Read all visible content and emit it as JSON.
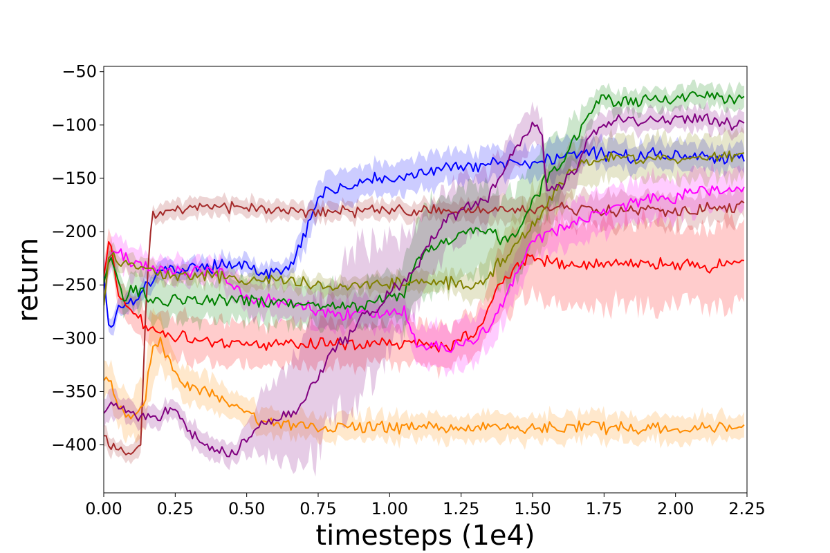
{
  "chart_data": {
    "type": "line",
    "title": "",
    "xlabel": "timesteps (1e4)",
    "ylabel": "return",
    "xlim": [
      0.0,
      2.25
    ],
    "ylim": [
      -445,
      -45
    ],
    "xticks": [
      0.0,
      0.25,
      0.5,
      0.75,
      1.0,
      1.25,
      1.5,
      1.75,
      2.0,
      2.25
    ],
    "xtick_labels": [
      "0.00",
      "0.25",
      "0.50",
      "0.75",
      "1.00",
      "1.25",
      "1.50",
      "1.75",
      "2.00",
      "2.25"
    ],
    "yticks": [
      -50,
      -100,
      -150,
      -200,
      -250,
      -300,
      -350,
      -400
    ],
    "ytick_labels": [
      "−50",
      "−100",
      "−150",
      "−200",
      "−250",
      "−300",
      "−350",
      "−400"
    ],
    "grid": false,
    "legend": "none",
    "shaded_band": true,
    "series": [
      {
        "color": "#0000ff",
        "x": [
          0,
          0.02,
          0.05,
          0.1,
          0.15,
          0.2,
          0.3,
          0.4,
          0.5,
          0.55,
          0.6,
          0.65,
          0.7,
          0.72,
          0.75,
          0.8,
          0.85,
          0.9,
          0.95,
          1.0,
          1.05,
          1.1,
          1.2,
          1.3,
          1.4,
          1.5,
          1.6,
          1.7,
          1.8,
          1.9,
          2.0,
          2.1,
          2.2,
          2.24
        ],
        "y": [
          -240,
          -295,
          -270,
          -265,
          -250,
          -235,
          -235,
          -232,
          -228,
          -240,
          -240,
          -235,
          -205,
          -185,
          -168,
          -160,
          -158,
          -155,
          -150,
          -155,
          -148,
          -145,
          -140,
          -138,
          -135,
          -135,
          -130,
          -125,
          -130,
          -128,
          -128,
          -130,
          -132,
          -128
        ],
        "spread": [
          8,
          8,
          8,
          10,
          10,
          8,
          8,
          8,
          8,
          8,
          8,
          10,
          12,
          15,
          15,
          15,
          15,
          15,
          15,
          15,
          15,
          15,
          15,
          15,
          15,
          15,
          15,
          12,
          12,
          12,
          12,
          12,
          12,
          12
        ]
      },
      {
        "color": "#a52a2a",
        "x": [
          0,
          0.02,
          0.05,
          0.1,
          0.13,
          0.15,
          0.17,
          0.2,
          0.3,
          0.4,
          0.5,
          0.6,
          0.7,
          0.8,
          0.9,
          1.0,
          1.1,
          1.2,
          1.3,
          1.4,
          1.5,
          1.6,
          1.7,
          1.8,
          1.9,
          2.0,
          2.1,
          2.2,
          2.24
        ],
        "y": [
          -390,
          -400,
          -405,
          -408,
          -395,
          -250,
          -185,
          -183,
          -178,
          -178,
          -178,
          -180,
          -182,
          -180,
          -182,
          -180,
          -182,
          -180,
          -180,
          -178,
          -180,
          -178,
          -180,
          -182,
          -180,
          -182,
          -178,
          -178,
          -175
        ],
        "spread": [
          8,
          8,
          8,
          8,
          10,
          15,
          8,
          8,
          8,
          8,
          8,
          8,
          8,
          8,
          8,
          8,
          8,
          8,
          10,
          12,
          12,
          15,
          15,
          15,
          15,
          15,
          15,
          15,
          15
        ]
      },
      {
        "color": "#ff0000",
        "x": [
          0,
          0.02,
          0.05,
          0.1,
          0.15,
          0.2,
          0.3,
          0.4,
          0.5,
          0.6,
          0.7,
          0.8,
          0.9,
          1.0,
          1.1,
          1.2,
          1.25,
          1.3,
          1.35,
          1.4,
          1.45,
          1.5,
          1.6,
          1.7,
          1.8,
          1.9,
          2.0,
          2.1,
          2.2,
          2.24
        ],
        "y": [
          -240,
          -205,
          -260,
          -275,
          -290,
          -295,
          -300,
          -305,
          -305,
          -305,
          -305,
          -305,
          -305,
          -305,
          -305,
          -310,
          -300,
          -295,
          -270,
          -245,
          -230,
          -225,
          -230,
          -230,
          -228,
          -230,
          -230,
          -232,
          -232,
          -228
        ],
        "spread": [
          15,
          10,
          15,
          15,
          15,
          20,
          20,
          20,
          20,
          20,
          20,
          20,
          20,
          20,
          20,
          20,
          20,
          20,
          25,
          30,
          35,
          40,
          40,
          40,
          40,
          40,
          40,
          40,
          40,
          40
        ]
      },
      {
        "color": "#ff00ff",
        "x": [
          0,
          0.03,
          0.1,
          0.2,
          0.3,
          0.4,
          0.5,
          0.6,
          0.7,
          0.8,
          0.9,
          1.0,
          1.05,
          1.1,
          1.2,
          1.3,
          1.35,
          1.4,
          1.45,
          1.5,
          1.6,
          1.7,
          1.8,
          1.9,
          2.0,
          2.1,
          2.2,
          2.24
        ],
        "y": [
          -245,
          -215,
          -230,
          -235,
          -238,
          -238,
          -262,
          -265,
          -270,
          -278,
          -278,
          -275,
          -275,
          -305,
          -310,
          -300,
          -290,
          -265,
          -240,
          -210,
          -195,
          -185,
          -178,
          -170,
          -168,
          -162,
          -160,
          -158
        ],
        "spread": [
          15,
          15,
          15,
          12,
          12,
          12,
          15,
          15,
          15,
          15,
          15,
          15,
          15,
          20,
          20,
          20,
          20,
          20,
          20,
          20,
          20,
          20,
          20,
          20,
          20,
          20,
          20,
          20
        ]
      },
      {
        "color": "#008000",
        "x": [
          0,
          0.03,
          0.07,
          0.1,
          0.2,
          0.3,
          0.4,
          0.5,
          0.6,
          0.7,
          0.8,
          0.9,
          1.0,
          1.05,
          1.1,
          1.15,
          1.2,
          1.3,
          1.35,
          1.4,
          1.45,
          1.5,
          1.55,
          1.6,
          1.65,
          1.7,
          1.75,
          1.8,
          1.9,
          2.0,
          2.1,
          2.2,
          2.24
        ],
        "y": [
          -245,
          -225,
          -265,
          -255,
          -265,
          -265,
          -265,
          -265,
          -268,
          -268,
          -270,
          -270,
          -262,
          -258,
          -225,
          -215,
          -208,
          -200,
          -200,
          -210,
          -200,
          -170,
          -150,
          -135,
          -110,
          -90,
          -72,
          -78,
          -78,
          -75,
          -70,
          -78,
          -72
        ],
        "spread": [
          10,
          10,
          15,
          15,
          20,
          20,
          20,
          20,
          20,
          20,
          20,
          20,
          25,
          30,
          40,
          45,
          45,
          45,
          40,
          40,
          40,
          40,
          40,
          30,
          20,
          15,
          10,
          10,
          10,
          10,
          10,
          10,
          10
        ]
      },
      {
        "color": "#808000",
        "x": [
          0,
          0.02,
          0.05,
          0.1,
          0.2,
          0.3,
          0.4,
          0.5,
          0.6,
          0.7,
          0.8,
          0.9,
          1.0,
          1.1,
          1.2,
          1.25,
          1.3,
          1.35,
          1.4,
          1.45,
          1.5,
          1.55,
          1.6,
          1.65,
          1.7,
          1.8,
          1.9,
          2.0,
          2.1,
          2.2,
          2.24
        ],
        "y": [
          -270,
          -220,
          -230,
          -232,
          -240,
          -242,
          -242,
          -245,
          -245,
          -248,
          -250,
          -250,
          -250,
          -248,
          -248,
          -250,
          -250,
          -240,
          -225,
          -210,
          -195,
          -175,
          -155,
          -140,
          -132,
          -130,
          -130,
          -132,
          -130,
          -128,
          -128
        ],
        "spread": [
          10,
          10,
          8,
          8,
          8,
          8,
          8,
          8,
          8,
          8,
          8,
          8,
          8,
          8,
          10,
          10,
          15,
          20,
          25,
          30,
          35,
          30,
          25,
          20,
          20,
          20,
          20,
          20,
          20,
          20,
          20
        ]
      },
      {
        "color": "#ff8c00",
        "x": [
          0,
          0.02,
          0.05,
          0.1,
          0.14,
          0.17,
          0.2,
          0.25,
          0.3,
          0.4,
          0.5,
          0.55,
          0.6,
          0.7,
          0.8,
          0.9,
          1.0,
          1.1,
          1.2,
          1.3,
          1.4,
          1.5,
          1.6,
          1.7,
          1.8,
          1.9,
          2.0,
          2.1,
          2.2,
          2.24
        ],
        "y": [
          -340,
          -340,
          -365,
          -375,
          -365,
          -310,
          -305,
          -335,
          -345,
          -355,
          -365,
          -378,
          -380,
          -382,
          -383,
          -383,
          -383,
          -384,
          -384,
          -383,
          -383,
          -384,
          -384,
          -383,
          -385,
          -384,
          -384,
          -384,
          -384,
          -382
        ],
        "spread": [
          15,
          15,
          20,
          20,
          25,
          30,
          25,
          15,
          15,
          15,
          12,
          12,
          12,
          12,
          12,
          12,
          12,
          12,
          12,
          12,
          12,
          12,
          12,
          12,
          12,
          12,
          12,
          12,
          12,
          12
        ]
      },
      {
        "color": "#800080",
        "x": [
          0,
          0.02,
          0.05,
          0.1,
          0.15,
          0.2,
          0.25,
          0.3,
          0.35,
          0.4,
          0.45,
          0.5,
          0.55,
          0.6,
          0.65,
          0.7,
          0.75,
          0.8,
          0.85,
          0.9,
          0.95,
          1.0,
          1.05,
          1.1,
          1.15,
          1.2,
          1.25,
          1.3,
          1.35,
          1.4,
          1.45,
          1.5,
          1.53,
          1.55,
          1.6,
          1.65,
          1.7,
          1.8,
          1.9,
          2.0,
          2.1,
          2.2,
          2.24
        ],
        "y": [
          -370,
          -360,
          -365,
          -370,
          -375,
          -372,
          -365,
          -390,
          -400,
          -405,
          -408,
          -395,
          -380,
          -375,
          -370,
          -360,
          -335,
          -310,
          -300,
          -280,
          -275,
          -255,
          -250,
          -230,
          -205,
          -190,
          -180,
          -175,
          -165,
          -140,
          -120,
          -100,
          -105,
          -160,
          -155,
          -140,
          -110,
          -95,
          -95,
          -95,
          -93,
          -100,
          -98
        ],
        "spread": [
          15,
          15,
          10,
          10,
          10,
          10,
          10,
          10,
          10,
          10,
          10,
          15,
          25,
          40,
          50,
          60,
          70,
          70,
          70,
          70,
          60,
          50,
          50,
          40,
          35,
          30,
          30,
          25,
          25,
          20,
          20,
          15,
          15,
          20,
          20,
          15,
          12,
          10,
          10,
          10,
          10,
          10,
          10
        ]
      }
    ]
  }
}
